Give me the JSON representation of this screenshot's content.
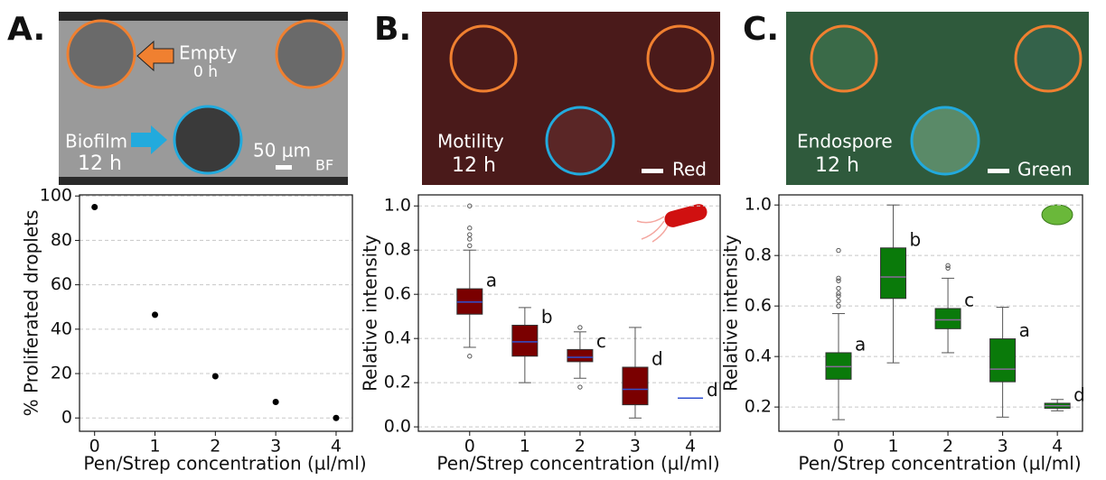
{
  "panel_labels": [
    "A.",
    "B.",
    "C."
  ],
  "micrographs": [
    {
      "labels": [
        "Empty",
        "0 h",
        "Biofilm",
        "12 h",
        "50 μm",
        "BF"
      ]
    },
    {
      "labels": [
        "Motility",
        "12 h",
        "Red"
      ]
    },
    {
      "labels": [
        "Endospore",
        "12 h",
        "Green"
      ]
    }
  ],
  "chart_data": [
    {
      "type": "scatter",
      "x_label": "Pen/Strep concentration  (µl/ml)",
      "y_label": "% Proliferated droplets",
      "x": [
        0,
        1,
        2,
        3,
        4
      ],
      "series": [
        {
          "color": "#000000",
          "values": [
            95,
            46.5,
            18.8,
            7.2,
            0
          ]
        }
      ],
      "xlim": [
        -0.25,
        4.27
      ],
      "ylim": [
        -6,
        100.5
      ],
      "xticks": [
        0,
        1,
        2,
        3,
        4
      ],
      "yticks": [
        0,
        20,
        40,
        60,
        80,
        100
      ],
      "grid": true
    },
    {
      "type": "box",
      "x_label": "Pen/Strep concentration  (µl/ml)",
      "y_label": "Relative intensity",
      "color": "#7a0000",
      "median_color": "#3050d0",
      "x": [
        0,
        1,
        2,
        3,
        4
      ],
      "stats": [
        {
          "whislo": 0.36,
          "q1": 0.51,
          "med": 0.565,
          "q3": 0.625,
          "whishi": 0.8,
          "fliers": [
            0.32,
            0.82,
            0.85,
            0.87,
            0.9,
            1.0
          ]
        },
        {
          "whislo": 0.2,
          "q1": 0.32,
          "med": 0.385,
          "q3": 0.46,
          "whishi": 0.54,
          "fliers": []
        },
        {
          "whislo": 0.22,
          "q1": 0.295,
          "med": 0.315,
          "q3": 0.35,
          "whishi": 0.43,
          "fliers": [
            0.18,
            0.45
          ]
        },
        {
          "whislo": 0.04,
          "q1": 0.1,
          "med": 0.17,
          "q3": 0.27,
          "whishi": 0.45,
          "fliers": []
        },
        {
          "whislo": 0.13,
          "q1": 0.13,
          "med": 0.13,
          "q3": 0.13,
          "whishi": 0.13,
          "fliers": []
        }
      ],
      "annotations": [
        "a",
        "b",
        "c",
        "d",
        "d"
      ],
      "xlim": [
        -0.93,
        4.54
      ],
      "ylim": [
        -0.02,
        1.05
      ],
      "xticks": [
        0,
        1,
        2,
        3,
        4
      ],
      "yticks": [
        {
          "value": 0,
          "label": "0.0"
        },
        0.2,
        0.4,
        0.6,
        0.8,
        {
          "value": 1,
          "label": "1.0"
        }
      ],
      "grid": true
    },
    {
      "type": "box",
      "x_label": "Pen/Strep concentration  (µl/ml)",
      "y_label": "Relative intensity",
      "color": "#0a7a0a",
      "median_color": "#8a6a9a",
      "x": [
        0,
        1,
        2,
        3,
        4
      ],
      "stats": [
        {
          "whislo": 0.15,
          "q1": 0.31,
          "med": 0.36,
          "q3": 0.415,
          "whishi": 0.57,
          "fliers": [
            0.6,
            0.62,
            0.64,
            0.65,
            0.67,
            0.7,
            0.71,
            0.82
          ]
        },
        {
          "whislo": 0.375,
          "q1": 0.63,
          "med": 0.715,
          "q3": 0.83,
          "whishi": 1.0,
          "fliers": []
        },
        {
          "whislo": 0.415,
          "q1": 0.51,
          "med": 0.545,
          "q3": 0.59,
          "whishi": 0.71,
          "fliers": [
            0.75,
            0.76
          ]
        },
        {
          "whislo": 0.16,
          "q1": 0.3,
          "med": 0.35,
          "q3": 0.47,
          "whishi": 0.595,
          "fliers": []
        },
        {
          "whislo": 0.185,
          "q1": 0.195,
          "med": 0.205,
          "q3": 0.215,
          "whishi": 0.23,
          "fliers": []
        }
      ],
      "annotations": [
        "a",
        "b",
        "c",
        "a",
        "d"
      ],
      "xlim": [
        -1.09,
        4.46
      ],
      "ylim": [
        0.104,
        1.04
      ],
      "xticks": [
        0,
        1,
        2,
        3,
        4
      ],
      "yticks": [
        0.2,
        0.4,
        0.6,
        0.8,
        {
          "value": 1,
          "label": "1.0"
        }
      ],
      "grid": true
    }
  ]
}
